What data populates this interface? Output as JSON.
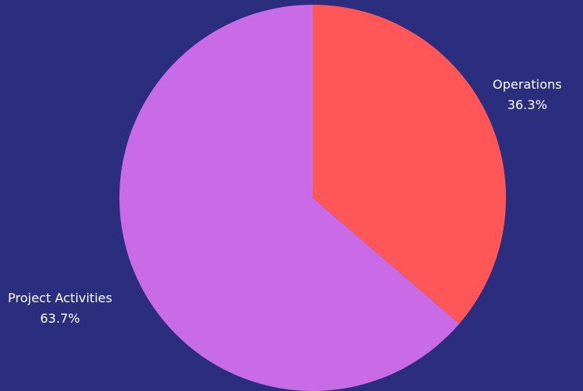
{
  "chart_data": {
    "type": "pie",
    "title": "",
    "slices": [
      {
        "label": "Operations",
        "value": 36.3,
        "value_label": "36.3%",
        "color": "#ff5757"
      },
      {
        "label": "Project Activities",
        "value": 63.7,
        "value_label": "63.7%",
        "color": "#c96ae6"
      }
    ],
    "background": "#2b2d7f",
    "label_color": "#ffffff",
    "legend": "none"
  }
}
